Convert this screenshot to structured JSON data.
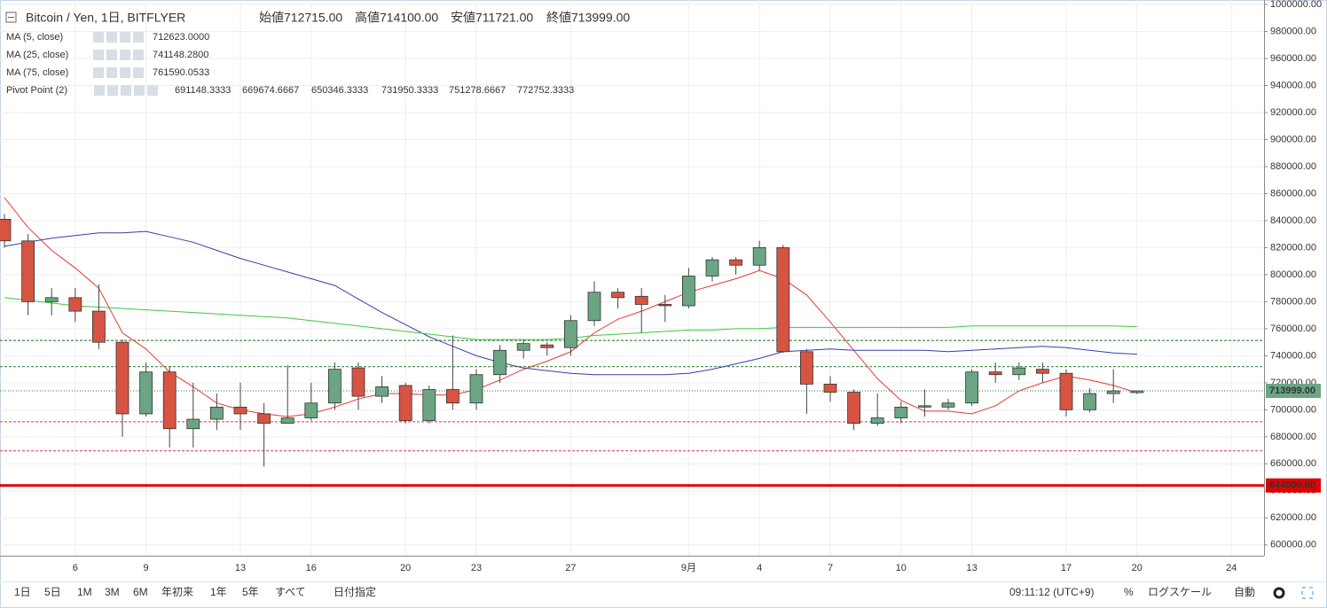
{
  "chart_data": {
    "type": "candlestick",
    "title": "Bitcoin / Yen, 1日, BITFLYER",
    "ohlc_summary": [
      "始値712715.00",
      "高値714100.00",
      "安値711721.00",
      "終値713999.00"
    ],
    "categories": [
      null,
      null,
      null,
      "6",
      null,
      null,
      "9",
      null,
      null,
      null,
      "13",
      null,
      null,
      "16",
      null,
      null,
      null,
      "20",
      null,
      null,
      "23",
      null,
      null,
      null,
      "27",
      null,
      null,
      null,
      null,
      "9月",
      null,
      null,
      "4",
      null,
      null,
      "7",
      null,
      null,
      "10",
      null,
      null,
      "13",
      null,
      null,
      null,
      "17",
      null,
      null,
      "20",
      null,
      null,
      null,
      "24",
      null
    ],
    "open": [
      841000,
      825000,
      780000,
      783000,
      773000,
      750000,
      697000,
      728000,
      686000,
      693000,
      702000,
      697000,
      690000,
      694000,
      705000,
      731000,
      710000,
      718000,
      692000,
      715000,
      705000,
      726000,
      744000,
      748000,
      746000,
      766000,
      787000,
      784000,
      778000,
      777000,
      799000,
      811000,
      807000,
      820000,
      743000,
      719000,
      713000,
      690000,
      694000,
      702000,
      702000,
      705000,
      728000,
      726000,
      730000,
      727000,
      700000,
      712000,
      712715,
      null,
      null,
      null,
      null,
      null
    ],
    "high": [
      845000,
      830000,
      790000,
      790000,
      793000,
      752000,
      735000,
      732000,
      720000,
      712000,
      720000,
      705000,
      733000,
      720000,
      735000,
      735000,
      725000,
      720000,
      718000,
      755000,
      730000,
      748000,
      752000,
      750000,
      770000,
      795000,
      790000,
      790000,
      785000,
      805000,
      813000,
      813000,
      825000,
      822000,
      745000,
      725000,
      715000,
      712000,
      706000,
      715000,
      708000,
      730000,
      735000,
      735000,
      735000,
      730000,
      716000,
      730000,
      714100,
      null,
      null,
      null,
      null,
      null
    ],
    "low": [
      820000,
      770000,
      770000,
      765000,
      745000,
      680000,
      695000,
      672000,
      672000,
      685000,
      685000,
      658000,
      690000,
      692000,
      700000,
      700000,
      705000,
      690000,
      690000,
      700000,
      700000,
      720000,
      738000,
      740000,
      740000,
      762000,
      775000,
      757000,
      765000,
      775000,
      795000,
      800000,
      803000,
      742000,
      697000,
      706000,
      685000,
      688000,
      690000,
      695000,
      700000,
      703000,
      720000,
      722000,
      720000,
      695000,
      698000,
      705000,
      711721,
      null,
      null,
      null,
      null,
      null
    ],
    "close": [
      825000,
      780000,
      783000,
      773000,
      750000,
      697000,
      728000,
      686000,
      693000,
      702000,
      697000,
      690000,
      694000,
      705000,
      730000,
      710000,
      717000,
      692000,
      715000,
      705000,
      726000,
      744000,
      749000,
      746000,
      766000,
      787000,
      783000,
      778000,
      777000,
      799000,
      811000,
      807000,
      820000,
      743000,
      719000,
      713000,
      690000,
      694000,
      702000,
      703000,
      705000,
      728000,
      726000,
      731000,
      727000,
      700000,
      712000,
      714000,
      713999,
      null,
      null,
      null,
      null,
      null
    ],
    "up_color": "#6ba583",
    "down_color": "#d75442",
    "series": [
      {
        "name": "MA (5, close)",
        "color": "#e53935",
        "legend_value": {
          "value": 712623,
          "label": "712623.0000"
        },
        "values": [
          857000,
          835000,
          818000,
          805000,
          790000,
          757000,
          745000,
          728000,
          717000,
          705000,
          700000,
          697000,
          695000,
          697000,
          702000,
          708000,
          712000,
          712000,
          711000,
          711000,
          715000,
          722000,
          730000,
          736000,
          743000,
          757000,
          767000,
          773000,
          780000,
          787000,
          792000,
          797000,
          803000,
          797000,
          785000,
          765000,
          744000,
          723000,
          707000,
          699000,
          699000,
          697000,
          703000,
          714000,
          720000,
          725000,
          722000,
          718000,
          712623,
          null,
          null,
          null,
          null,
          null
        ]
      },
      {
        "name": "MA (25, close)",
        "color": "#3b3bab",
        "legend_value": {
          "value": 741148.28,
          "label": "741148.2800"
        },
        "values": [
          821000,
          824000,
          827000,
          829000,
          831000,
          831000,
          832000,
          828000,
          824000,
          818000,
          812000,
          807000,
          802000,
          797000,
          792000,
          782000,
          772000,
          763000,
          754000,
          747000,
          740000,
          735000,
          731000,
          729000,
          727000,
          726000,
          726000,
          726000,
          726000,
          727000,
          730000,
          734000,
          738000,
          743000,
          744000,
          745000,
          744000,
          744000,
          744000,
          744000,
          743000,
          744000,
          745000,
          746000,
          747000,
          746000,
          744000,
          742000,
          741148.28,
          null,
          null,
          null,
          null,
          null
        ]
      },
      {
        "name": "MA (75, close)",
        "color": "#3ec83e",
        "legend_value": {
          "value": 761590.0533,
          "label": "761590.0533"
        },
        "values": [
          783000,
          781000,
          779000,
          777000,
          776000,
          775000,
          774000,
          773000,
          772000,
          771000,
          770000,
          769000,
          768000,
          766000,
          764000,
          762000,
          760000,
          758000,
          756000,
          754000,
          752000,
          752000,
          752000,
          752000,
          753000,
          755000,
          756000,
          757000,
          758000,
          759000,
          759000,
          760000,
          760000,
          761000,
          761000,
          761000,
          761000,
          761000,
          761000,
          761000,
          761000,
          762000,
          762000,
          762000,
          762000,
          762000,
          762000,
          762000,
          761590.0533,
          null,
          null,
          null,
          null,
          null
        ]
      }
    ],
    "pivot": {
      "name": "Pivot Point (2)",
      "levels": [
        691148.3333,
        669674.6667,
        650346.3333,
        731950.3333,
        751278.6667,
        772752.3333
      ],
      "colors": [
        "#e2344a",
        "#e2344a",
        "#e2344a",
        "#2e7d32",
        "#2e7d32",
        "#2e7d32"
      ]
    },
    "hline": {
      "value": 644000,
      "label": "644000.00",
      "color": "#e00000"
    },
    "last_price": {
      "value": 713999,
      "label": "713999.00",
      "color": "#6ba583"
    },
    "ylim": [
      592000,
      1003300
    ],
    "yticks": [
      {
        "value": 600000,
        "label": "600000.00"
      },
      {
        "value": 620000,
        "label": "620000.00"
      },
      {
        "value": 640000,
        "label": "640000.00"
      },
      {
        "value": 660000,
        "label": "660000.00"
      },
      {
        "value": 680000,
        "label": "680000.00"
      },
      {
        "value": 700000,
        "label": "700000.00"
      },
      {
        "value": 720000,
        "label": "720000.00"
      },
      {
        "value": 740000,
        "label": "740000.00"
      },
      {
        "value": 760000,
        "label": "760000.00"
      },
      {
        "value": 780000,
        "label": "780000.00"
      },
      {
        "value": 800000,
        "label": "800000.00"
      },
      {
        "value": 820000,
        "label": "820000.00"
      },
      {
        "value": 840000,
        "label": "840000.00"
      },
      {
        "value": 860000,
        "label": "860000.00"
      },
      {
        "value": 880000,
        "label": "880000.00"
      },
      {
        "value": 900000,
        "label": "900000.00"
      },
      {
        "value": 920000,
        "label": "920000.00"
      },
      {
        "value": 940000,
        "label": "940000.00"
      },
      {
        "value": 960000,
        "label": "960000.00"
      },
      {
        "value": 980000,
        "label": "980000.00"
      },
      {
        "value": 1000000,
        "label": "1000000.00"
      }
    ],
    "grid": true
  },
  "toolbar": {
    "ranges": [
      "1日",
      "5日",
      "1M",
      "3M",
      "6M",
      "年初来",
      "1年",
      "5年",
      "すべて",
      "日付指定"
    ],
    "clock": "09:11:12 (UTC+9)",
    "options": [
      "%",
      "ログスケール",
      "自動"
    ]
  }
}
